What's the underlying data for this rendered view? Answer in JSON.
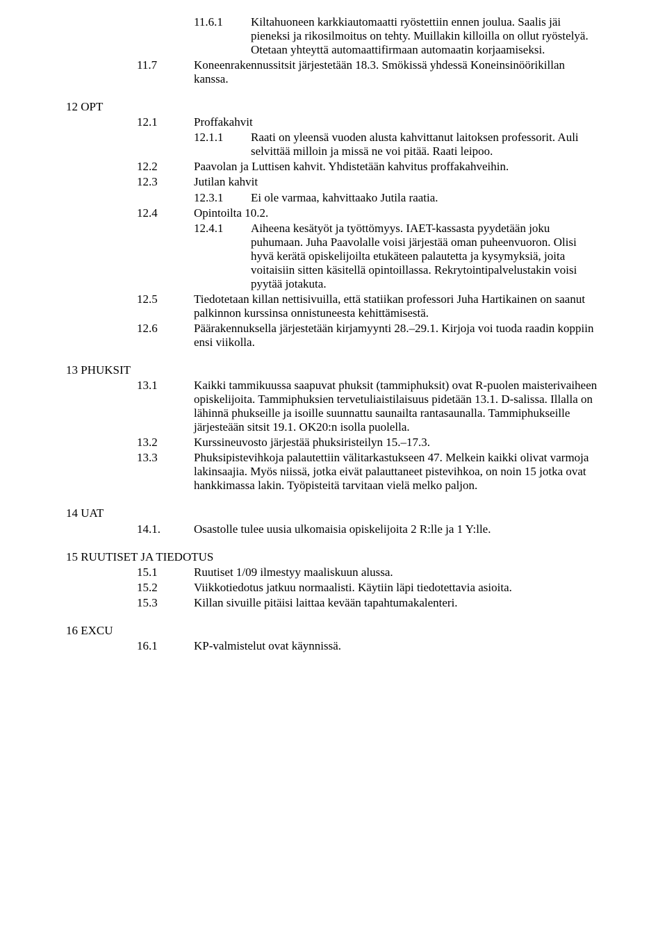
{
  "font": {
    "family": "Times New Roman",
    "size_pt": 13,
    "color": "#000000"
  },
  "background_color": "#ffffff",
  "s11": {
    "i6_1": {
      "num": "11.6.1",
      "text": "Kiltahuoneen karkkiautomaatti ryöstettiin ennen joulua. Saalis jäi pieneksi ja rikosilmoitus on tehty. Muillakin killoilla on ollut ryöstelyä. Otetaan yhteyttä automaattifirmaan automaatin korjaamiseksi."
    },
    "i7": {
      "num": "11.7",
      "text": "Koneenrakennussitsit järjestetään 18.3. Smökissä yhdessä Koneinsinöörikillan kanssa."
    }
  },
  "s12": {
    "heading": "12 OPT",
    "i1": {
      "num": "12.1",
      "text": "Proffakahvit"
    },
    "i1_1": {
      "num": "12.1.1",
      "text": "Raati on yleensä vuoden alusta kahvittanut laitoksen professorit. Auli selvittää milloin ja missä ne voi pitää. Raati leipoo."
    },
    "i2": {
      "num": "12.2",
      "text": "Paavolan ja Luttisen kahvit. Yhdistetään kahvitus proffakahveihin."
    },
    "i3": {
      "num": "12.3",
      "text": "Jutilan kahvit"
    },
    "i3_1": {
      "num": "12.3.1",
      "text": "Ei ole varmaa, kahvittaako Jutila raatia."
    },
    "i4": {
      "num": "12.4",
      "text": "Opintoilta 10.2."
    },
    "i4_1": {
      "num": "12.4.1",
      "text": "Aiheena kesätyöt ja työttömyys. IAET-kassasta pyydetään joku puhumaan. Juha Paavolalle voisi järjestää oman puheenvuoron. Olisi hyvä kerätä opiskelijoilta etukäteen palautetta ja kysymyksiä, joita voitaisiin sitten käsitellä opintoillassa. Rekrytointipalvelustakin voisi pyytää jotakuta."
    },
    "i5": {
      "num": "12.5",
      "text": "Tiedotetaan killan nettisivuilla, että statiikan professori Juha Hartikainen on saanut palkinnon kurssinsa onnistuneesta kehittämisestä."
    },
    "i6": {
      "num": "12.6",
      "text": "Päärakennuksella järjestetään kirjamyynti 28.–29.1. Kirjoja voi tuoda raadin koppiin ensi viikolla."
    }
  },
  "s13": {
    "heading": "13 PHUKSIT",
    "i1": {
      "num": "13.1",
      "text": "Kaikki tammikuussa saapuvat phuksit (tammiphuksit) ovat R-puolen maisterivaiheen opiskelijoita. Tammiphuksien tervetuliaistilaisuus pidetään 13.1. D-salissa. Illalla on lähinnä phukseille ja isoille suunnattu saunailta rantasaunalla. Tammiphukseille järjesteään sitsit 19.1. OK20:n isolla puolella."
    },
    "i2": {
      "num": "13.2",
      "text": "Kurssineuvosto järjestää phuksiristeilyn 15.–17.3."
    },
    "i3": {
      "num": "13.3",
      "text": "Phuksipistevihkoja palautettiin välitarkastukseen 47. Melkein kaikki olivat varmoja lakinsaajia. Myös niissä, jotka eivät palauttaneet pistevihkoa, on noin 15 jotka ovat hankkimassa lakin. Työpisteitä tarvitaan vielä melko paljon."
    }
  },
  "s14": {
    "heading": "14 UAT",
    "i1": {
      "num": "14.1.",
      "text": "Osastolle tulee uusia ulkomaisia opiskelijoita 2 R:lle ja 1 Y:lle."
    }
  },
  "s15": {
    "heading": "15 RUUTISET JA TIEDOTUS",
    "i1": {
      "num": "15.1",
      "text": "Ruutiset 1/09 ilmestyy maaliskuun alussa."
    },
    "i2": {
      "num": "15.2",
      "text": "Viikkotiedotus jatkuu normaalisti. Käytiin läpi tiedotettavia asioita."
    },
    "i3": {
      "num": "15.3",
      "text": "Killan sivuille pitäisi laittaa kevään tapahtumakalenteri."
    }
  },
  "s16": {
    "heading": "16 EXCU",
    "i1": {
      "num": "16.1",
      "text": "KP-valmistelut ovat käynnissä."
    }
  }
}
